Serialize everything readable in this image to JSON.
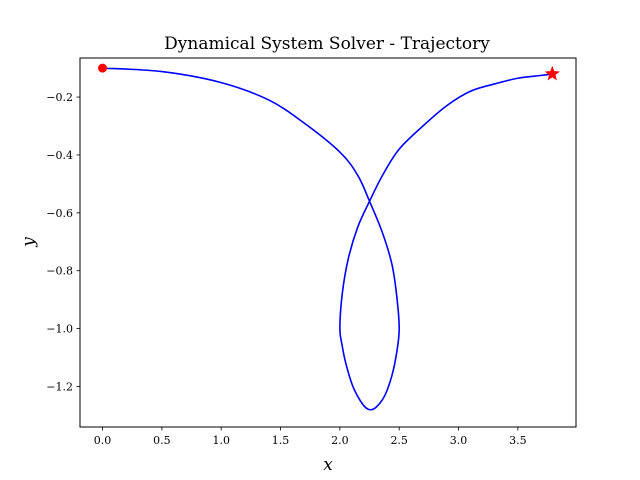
{
  "chart_data": {
    "type": "line",
    "title": "Dynamical System Solver - Trajectory",
    "xlabel": "x",
    "ylabel": "y",
    "xlim": [
      -0.19,
      3.99
    ],
    "ylim": [
      -1.34,
      -0.065
    ],
    "xticks": [
      0.0,
      0.5,
      1.0,
      1.5,
      2.0,
      2.5,
      3.0,
      3.5
    ],
    "xtick_labels": [
      "0.0",
      "0.5",
      "1.0",
      "1.5",
      "2.0",
      "2.5",
      "3.0",
      "3.5"
    ],
    "yticks": [
      -0.2,
      -0.4,
      -0.6,
      -0.8,
      -1.0,
      -1.2
    ],
    "ytick_labels": [
      "−0.2",
      "−0.4",
      "−0.6",
      "−0.8",
      "−1.0",
      "−1.2"
    ],
    "grid": false,
    "series": [
      {
        "color": "#0000ff",
        "x": [
          0.0,
          0.5,
          1.0,
          1.4,
          1.7,
          2.0,
          2.15,
          2.25,
          2.36,
          2.44,
          2.48,
          2.5,
          2.48,
          2.44,
          2.38,
          2.31,
          2.25,
          2.19,
          2.11,
          2.05,
          2.02,
          2.0,
          2.02,
          2.07,
          2.15,
          2.25,
          2.36,
          2.5,
          2.7,
          2.9,
          3.1,
          3.3,
          3.5,
          3.7,
          3.79
        ],
        "y": [
          -0.1,
          -0.112,
          -0.15,
          -0.21,
          -0.29,
          -0.39,
          -0.47,
          -0.56,
          -0.67,
          -0.78,
          -0.89,
          -1.0,
          -1.08,
          -1.16,
          -1.23,
          -1.27,
          -1.28,
          -1.26,
          -1.2,
          -1.12,
          -1.06,
          -1.0,
          -0.88,
          -0.76,
          -0.65,
          -0.56,
          -0.47,
          -0.38,
          -0.3,
          -0.23,
          -0.18,
          -0.155,
          -0.135,
          -0.125,
          -0.12
        ]
      }
    ],
    "markers": [
      {
        "x": 0.0,
        "y": -0.1,
        "shape": "circle",
        "color": "#ff0000"
      },
      {
        "x": 3.79,
        "y": -0.12,
        "shape": "star",
        "color": "#ff0000"
      }
    ]
  }
}
